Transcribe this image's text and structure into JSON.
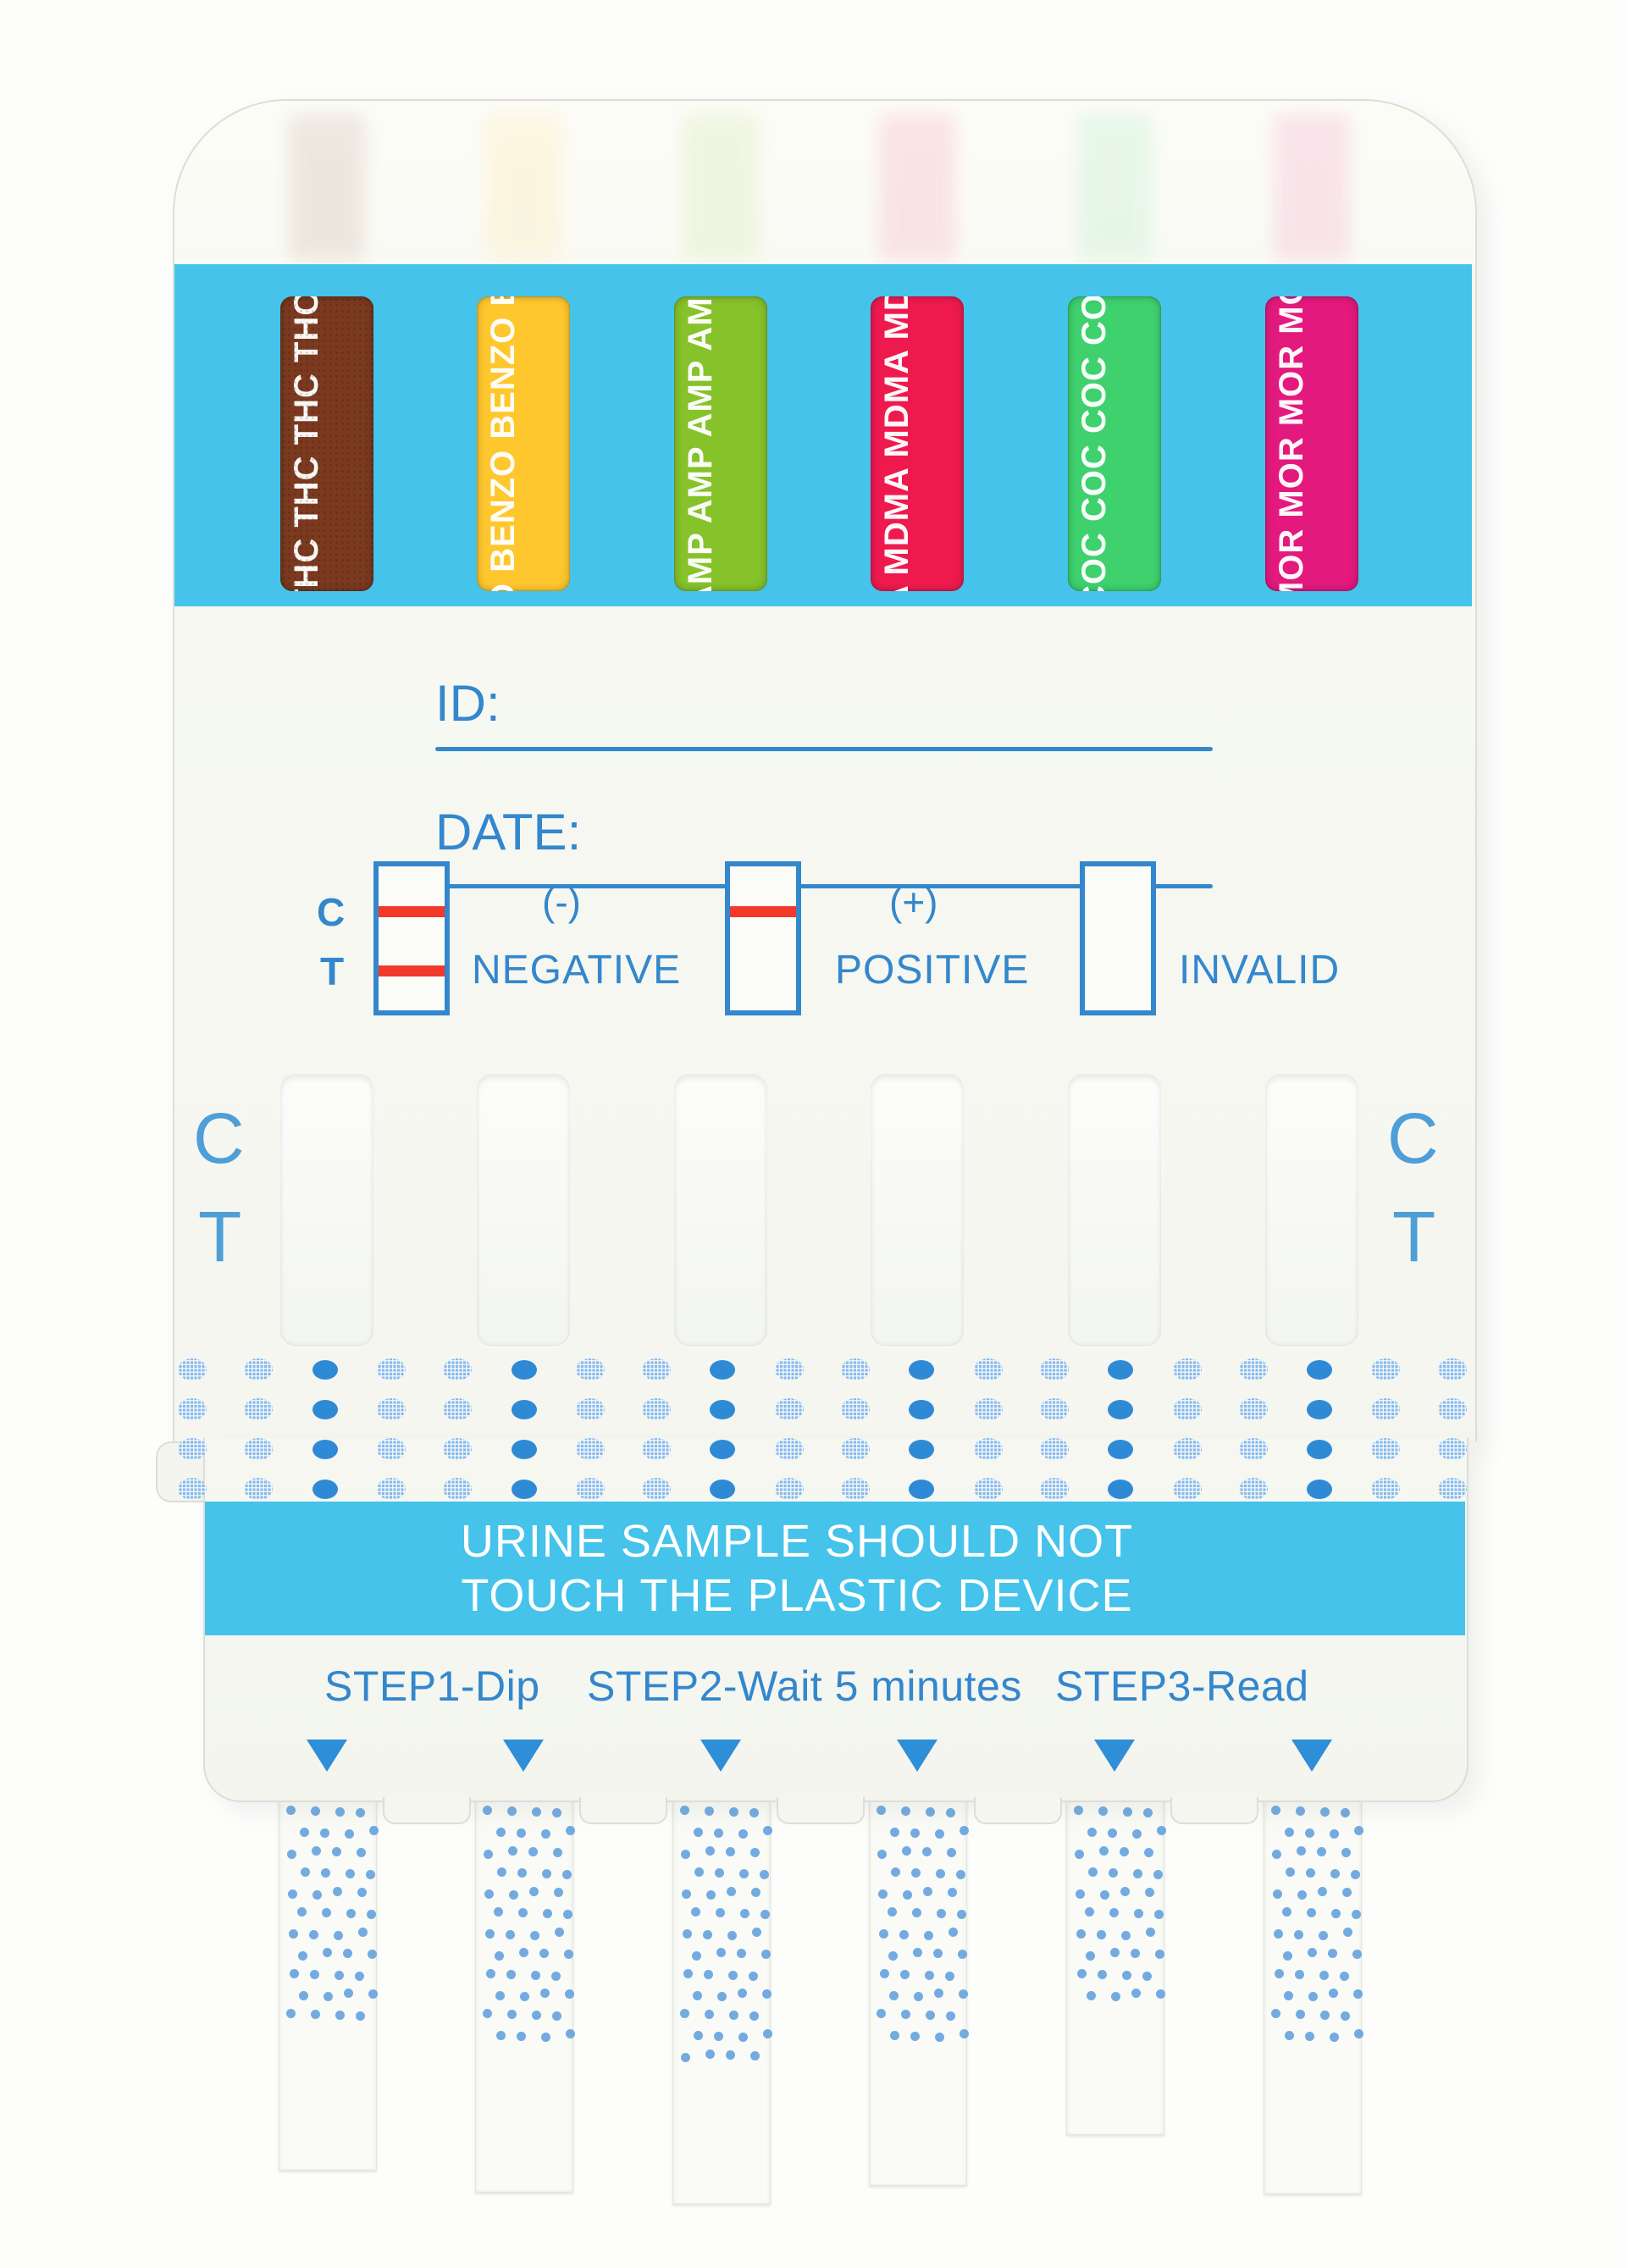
{
  "panels": [
    {
      "name": "THC",
      "color": "#7b3a1f"
    },
    {
      "name": "BENZO",
      "color": "#fec72e"
    },
    {
      "name": "AMP",
      "color": "#86c22a"
    },
    {
      "name": "MDMA",
      "color": "#ee1a4e"
    },
    {
      "name": "COC",
      "color": "#3ed16e"
    },
    {
      "name": "MOR",
      "color": "#e3197e"
    }
  ],
  "form": {
    "id_label": "ID:",
    "date_label": "DATE:"
  },
  "legend": {
    "c": "C",
    "t": "T",
    "neg_symbol": "(-)",
    "neg_label": "NEGATIVE",
    "pos_symbol": "(+)",
    "pos_label": "POSITIVE",
    "invalid_label": "INVALID"
  },
  "result_area": {
    "c_left": "C",
    "t_left": "T",
    "c_right": "C",
    "t_right": "T"
  },
  "warning": {
    "line1": "URINE SAMPLE SHOULD NOT",
    "line2": "TOUCH THE PLASTIC DEVICE"
  },
  "steps": [
    {
      "label": "STEP1-Dip"
    },
    {
      "label": "STEP2-Wait 5 minutes"
    },
    {
      "label": "STEP3-Read"
    }
  ],
  "colors": {
    "band_cyan": "#45c3ea",
    "print_blue": "#3387cd",
    "accent_red": "#f1392c",
    "solid_dot_blue": "#2f8ad6",
    "hatch_dot_blue": "#7db4e9",
    "triangle_blue": "#2e8fd8"
  }
}
